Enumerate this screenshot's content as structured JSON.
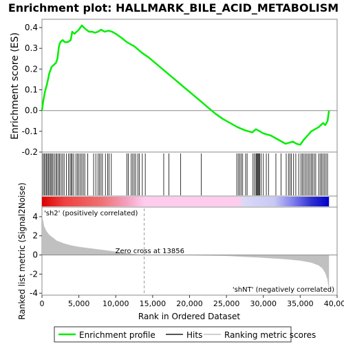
{
  "chart_data": {
    "type": "line",
    "title": "Enrichment plot: HALLMARK_BILE_ACID_METABOLISM",
    "top_panel": {
      "ylabel": "Enrichment score (ES)",
      "ylim": [
        -0.2,
        0.44
      ],
      "yticks": [
        "0.4",
        "0.3",
        "0.2",
        "0.1",
        "0.0",
        "-0.1",
        "-0.2"
      ],
      "ytick_values": [
        0.4,
        0.3,
        0.2,
        0.1,
        0.0,
        -0.1,
        -0.2
      ],
      "line_color": "#00ee00",
      "series": [
        {
          "name": "Enrichment profile",
          "x": [
            0,
            150,
            400,
            700,
            1000,
            1300,
            1600,
            1900,
            2100,
            2300,
            2500,
            2800,
            3100,
            3500,
            3900,
            4100,
            4400,
            4700,
            5000,
            5400,
            5700,
            6000,
            6400,
            6800,
            7200,
            7600,
            8000,
            8500,
            9000,
            9500,
            10000,
            10800,
            11500,
            12500,
            13500,
            14500,
            15500,
            16500,
            17500,
            18500,
            19500,
            20500,
            21500,
            22500,
            23500,
            24500,
            25500,
            26500,
            27500,
            28500,
            29000,
            29500,
            30000,
            30500,
            31000,
            31500,
            32000,
            32500,
            33000,
            33500,
            34000,
            34500,
            35000,
            35500,
            36000,
            36500,
            37000,
            37500,
            37800,
            38100,
            38400,
            38700,
            38900
          ],
          "y": [
            0.0,
            0.04,
            0.09,
            0.13,
            0.18,
            0.21,
            0.22,
            0.23,
            0.25,
            0.31,
            0.33,
            0.34,
            0.33,
            0.33,
            0.34,
            0.38,
            0.37,
            0.38,
            0.39,
            0.41,
            0.4,
            0.39,
            0.38,
            0.38,
            0.375,
            0.38,
            0.39,
            0.38,
            0.385,
            0.38,
            0.37,
            0.35,
            0.33,
            0.31,
            0.28,
            0.255,
            0.225,
            0.195,
            0.165,
            0.135,
            0.105,
            0.075,
            0.045,
            0.015,
            -0.015,
            -0.04,
            -0.06,
            -0.08,
            -0.095,
            -0.105,
            -0.09,
            -0.1,
            -0.11,
            -0.115,
            -0.12,
            -0.13,
            -0.14,
            -0.15,
            -0.16,
            -0.155,
            -0.15,
            -0.16,
            -0.165,
            -0.14,
            -0.12,
            -0.1,
            -0.09,
            -0.08,
            -0.07,
            -0.06,
            -0.07,
            -0.05,
            0.0
          ]
        }
      ]
    },
    "hits_panel": {
      "hit_positions": [
        150,
        300,
        450,
        600,
        750,
        900,
        1050,
        1200,
        1350,
        1500,
        1700,
        1900,
        2050,
        2250,
        2400,
        2600,
        2800,
        3000,
        3300,
        3600,
        3800,
        3950,
        4100,
        4300,
        4600,
        4800,
        5000,
        5200,
        5400,
        5600,
        5800,
        6200,
        7000,
        7300,
        7600,
        7800,
        8000,
        8200,
        8600,
        8900,
        9100,
        9400,
        11500,
        11700,
        12100,
        12300,
        12500,
        12700,
        13000,
        13200,
        13600,
        14000,
        16500,
        17200,
        18800,
        21600,
        26400,
        26600,
        26800,
        27000,
        27200,
        27600,
        27800,
        28600,
        28800,
        29000,
        29100,
        29200,
        29300,
        29400,
        29500,
        29700,
        30000,
        30400,
        30700,
        31700,
        32400,
        33100,
        33400,
        33600,
        33800,
        34100,
        34400,
        34800,
        35100,
        35300,
        35500,
        35700,
        35900,
        36100,
        36300,
        36500,
        36700,
        36900,
        37100,
        37500,
        37700,
        37900,
        38100,
        38300,
        38500,
        38700
      ]
    },
    "ranking_bar": {
      "stops": [
        {
          "pos": 0,
          "color": "#dd0000"
        },
        {
          "pos": 3000,
          "color": "#ee4040"
        },
        {
          "pos": 8000,
          "color": "#ee7070"
        },
        {
          "pos": 11500,
          "color": "#f5a0c0"
        },
        {
          "pos": 13856,
          "color": "#ffccee"
        },
        {
          "pos": 26500,
          "color": "#ffccee"
        },
        {
          "pos": 27500,
          "color": "#d8d8f8"
        },
        {
          "pos": 31500,
          "color": "#c8c8f4"
        },
        {
          "pos": 34000,
          "color": "#8080ee"
        },
        {
          "pos": 36500,
          "color": "#3030d0"
        },
        {
          "pos": 38900,
          "color": "#0000cc"
        }
      ]
    },
    "bottom_panel": {
      "ylabel": "Ranked list metric (Signal2Noise)",
      "xlabel": "Rank in Ordered Dataset",
      "ylim": [
        -4.2,
        5
      ],
      "yticks": [
        "4",
        "2",
        "0",
        "-2",
        "-4"
      ],
      "ytick_values": [
        4,
        2,
        0,
        -2,
        -4
      ],
      "xlim": [
        0,
        40000
      ],
      "xticks": [
        "0",
        "5,000",
        "10,000",
        "15,000",
        "20,000",
        "25,000",
        "30,000",
        "35,000",
        "40,000"
      ],
      "xtick_values": [
        0,
        5000,
        10000,
        15000,
        20000,
        25000,
        30000,
        35000,
        40000
      ],
      "zero_cross": 13856,
      "zero_cross_label": "Zero cross at 13856",
      "pos_label": "'sh2' (positively correlated)",
      "neg_label": "'shNT' (negatively correlated)",
      "pos_color": "#cc0000",
      "neg_color": "#0000cc",
      "metric_x": [
        0,
        100,
        300,
        600,
        1000,
        1500,
        2000,
        3000,
        4000,
        5000,
        6000,
        7000,
        8000,
        9000,
        10000,
        11000,
        12000,
        13000,
        13856,
        15000,
        20000,
        25000,
        27000,
        30000,
        33000,
        35000,
        36500,
        37500,
        38000,
        38400,
        38700,
        38900
      ],
      "metric_y": [
        4.2,
        3.8,
        3.0,
        2.5,
        2.1,
        1.8,
        1.5,
        1.2,
        1.0,
        0.85,
        0.75,
        0.65,
        0.55,
        0.45,
        0.35,
        0.25,
        0.15,
        0.05,
        0.0,
        -0.02,
        -0.05,
        -0.1,
        -0.18,
        -0.3,
        -0.45,
        -0.6,
        -0.8,
        -1.1,
        -1.4,
        -1.9,
        -2.6,
        -3.8
      ]
    },
    "legend": [
      {
        "label": "Enrichment profile",
        "color": "#00ee00"
      },
      {
        "label": "Hits",
        "color": "#555555"
      },
      {
        "label": "Ranking metric scores",
        "color": "#d0d0d0"
      }
    ]
  }
}
